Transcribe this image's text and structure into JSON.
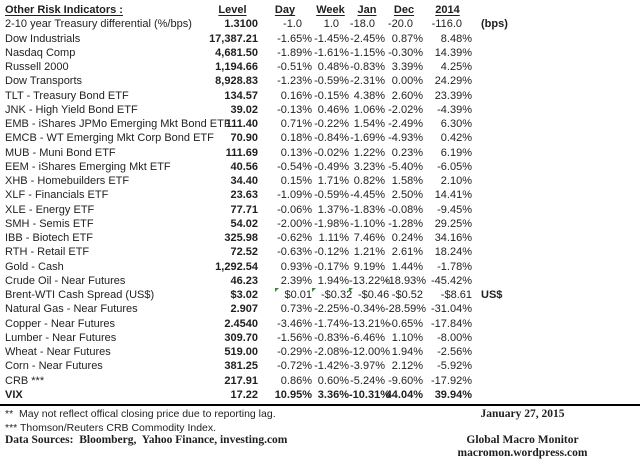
{
  "colors": {
    "text": "#1f1f1f",
    "marker_green": "#2e8b2e",
    "rule": "#000000"
  },
  "table": {
    "title": "Other Risk Indicators :",
    "columns": {
      "level": "Level",
      "day": "Day",
      "week": "Week",
      "jan": "Jan",
      "dec": "Dec",
      "y2014": "2014"
    },
    "rows": [
      {
        "label": "2-10 year Treasury differential (%/bps)",
        "level": "1.3100",
        "day": "-1.0",
        "week": "1.0",
        "jan": "-18.0",
        "dec": "-20.0",
        "y2014": "-116.0",
        "note": "(bps)",
        "bps_pad": true
      },
      {
        "label": "Dow Industrials",
        "level": "17,387.21",
        "day": "-1.65%",
        "week": "-1.45%",
        "jan": "-2.45%",
        "dec": "0.87%",
        "y2014": "8.48%"
      },
      {
        "label": "Nasdaq Comp",
        "level": "4,681.50",
        "day": "-1.89%",
        "week": "-1.61%",
        "jan": "-1.15%",
        "dec": "-0.30%",
        "y2014": "14.39%"
      },
      {
        "label": "Russell 2000",
        "level": "1,194.66",
        "day": "-0.51%",
        "week": "0.48%",
        "jan": "-0.83%",
        "dec": "3.39%",
        "y2014": "4.25%"
      },
      {
        "label": "Dow Transports",
        "level": "8,928.83",
        "day": "-1.23%",
        "week": "-0.59%",
        "jan": "-2.31%",
        "dec": "0.00%",
        "y2014": "24.29%"
      },
      {
        "label": "TLT - Treasury Bond ETF",
        "level": "134.57",
        "day": "0.16%",
        "week": "-0.15%",
        "jan": "4.38%",
        "dec": "2.60%",
        "y2014": "23.39%"
      },
      {
        "label": "JNK - High Yield Bond ETF",
        "level": "39.02",
        "day": "-0.13%",
        "week": "0.46%",
        "jan": "1.06%",
        "dec": "-2.02%",
        "y2014": "-4.39%"
      },
      {
        "label": "EMB - iShares JPMo Emerging Mkt Bond ETF",
        "level": "111.40",
        "day": "0.71%",
        "week": "-0.22%",
        "jan": "1.54%",
        "dec": "-2.49%",
        "y2014": "6.30%"
      },
      {
        "label": "EMCB - WT Emerging Mkt Corp Bond ETF",
        "level": "70.90",
        "day": "0.18%",
        "week": "-0.84%",
        "jan": "-1.69%",
        "dec": "-4.93%",
        "y2014": "0.42%"
      },
      {
        "label": "MUB - Muni Bond ETF",
        "level": "111.69",
        "day": "0.13%",
        "week": "-0.02%",
        "jan": "1.22%",
        "dec": "0.23%",
        "y2014": "6.19%"
      },
      {
        "label": "EEM - iShares Emerging Mkt ETF",
        "level": "40.56",
        "day": "-0.54%",
        "week": "-0.49%",
        "jan": "3.23%",
        "dec": "-5.40%",
        "y2014": "-6.05%"
      },
      {
        "label": "XHB - Homebuilders ETF",
        "level": "34.40",
        "day": "0.15%",
        "week": "1.71%",
        "jan": "0.82%",
        "dec": "1.58%",
        "y2014": "2.10%"
      },
      {
        "label": "XLF - Financials ETF",
        "level": "23.63",
        "day": "-1.09%",
        "week": "-0.59%",
        "jan": "-4.45%",
        "dec": "2.50%",
        "y2014": "14.41%"
      },
      {
        "label": "XLE - Energy ETF",
        "level": "77.71",
        "day": "-0.06%",
        "week": "1.37%",
        "jan": "-1.83%",
        "dec": "-0.08%",
        "y2014": "-9.45%"
      },
      {
        "label": "SMH - Semis ETF",
        "level": "54.02",
        "day": "-2.00%",
        "week": "-1.98%",
        "jan": "-1.10%",
        "dec": "-1.28%",
        "y2014": "29.25%"
      },
      {
        "label": "IBB - Biotech ETF",
        "level": "325.98",
        "day": "-0.62%",
        "week": "1.11%",
        "jan": "7.46%",
        "dec": "0.24%",
        "y2014": "34.16%"
      },
      {
        "label": "RTH - Retail ETF",
        "level": "72.52",
        "day": "-0.63%",
        "week": "-0.12%",
        "jan": "1.21%",
        "dec": "2.61%",
        "y2014": "18.24%"
      },
      {
        "label": "Gold - Cash",
        "level": "1,292.54",
        "day": "0.93%",
        "week": "-0.17%",
        "jan": "9.19%",
        "dec": "1.44%",
        "y2014": "-1.78%"
      },
      {
        "label": "Crude Oil - Near Futures",
        "level": "46.23",
        "day": "2.39%",
        "week": "1.94%",
        "jan": "-13.22%",
        "dec": "-18.93%",
        "y2014": "-45.42%"
      },
      {
        "label": "Brent-WTI Cash Spread (US$)",
        "level": "$3.02",
        "day": "$0.01",
        "week": "-$0.32",
        "jan": "-$0.46",
        "dec": "-$0.52",
        "y2014": "-$8.61",
        "note": "US$",
        "markers": [
          "day",
          "week",
          "jan"
        ]
      },
      {
        "label": "Natural Gas - Near Futures",
        "level": "2.907",
        "day": "0.73%",
        "week": "-2.25%",
        "jan": "-0.34%",
        "dec": "-28.59%",
        "y2014": "-31.04%"
      },
      {
        "label": "Copper - Near Futures",
        "level": "2.4540",
        "day": "-3.46%",
        "week": "-1.74%",
        "jan": "-13.21%",
        "dec": "-0.65%",
        "y2014": "-17.84%"
      },
      {
        "label": "Lumber - Near Futures",
        "level": "309.70",
        "day": "-1.56%",
        "week": "-0.83%",
        "jan": "-6.46%",
        "dec": "1.10%",
        "y2014": "-8.00%"
      },
      {
        "label": "Wheat - Near Futures",
        "level": "519.00",
        "day": "-0.29%",
        "week": "-2.08%",
        "jan": "-12.00%",
        "dec": "1.94%",
        "y2014": "-2.56%"
      },
      {
        "label": "Corn - Near Futures",
        "level": "381.25",
        "day": "-0.72%",
        "week": "-1.42%",
        "jan": "-3.97%",
        "dec": "2.12%",
        "y2014": "-5.92%"
      },
      {
        "label": "CRB ***",
        "level": "217.91",
        "day": "0.86%",
        "week": "0.60%",
        "jan": "-5.24%",
        "dec": "-9.60%",
        "y2014": "-17.92%"
      },
      {
        "label": "VIX",
        "level": "17.22",
        "day": "10.95%",
        "week": "3.36%",
        "jan": "-10.31%",
        "dec": "44.04%",
        "y2014": "39.94%",
        "bold": true
      }
    ]
  },
  "footer": {
    "note1": "**  May not reflect offical closing price due to reporting lag.",
    "note2": "*** Thomson/Reuters CRB Commodity Index.",
    "sources": "Data Sources:  Bloomberg,  Yahoo Finance, investing.com",
    "date": "January 27, 2015",
    "brand": "Global Macro Monitor",
    "site": "macromon.wordpress.com"
  }
}
